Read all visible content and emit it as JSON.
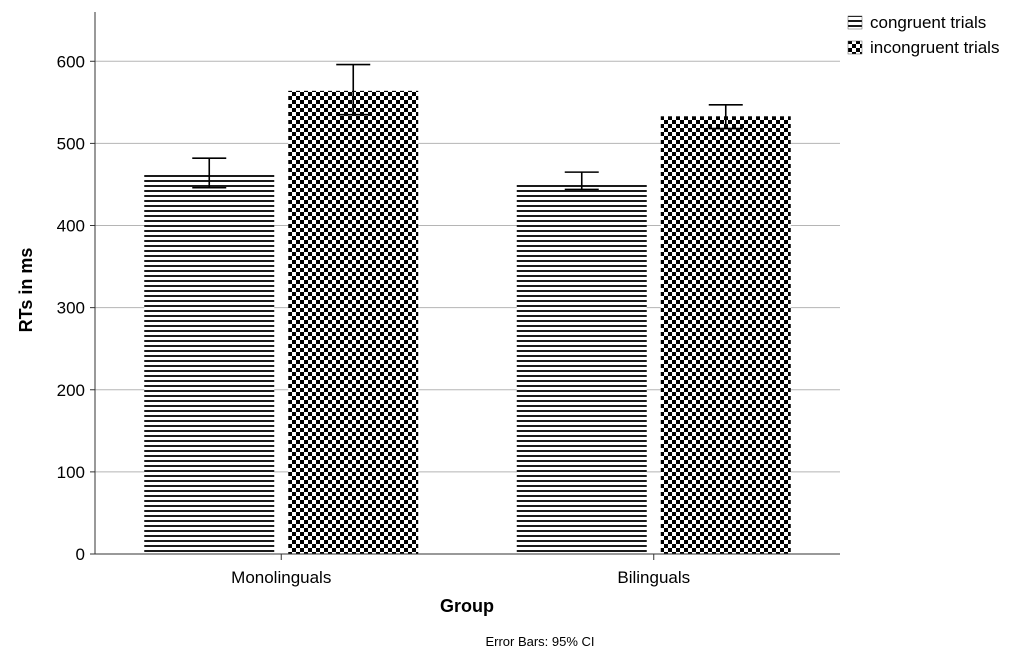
{
  "chart_data": {
    "type": "bar",
    "categories": [
      "Monolinguals",
      "Bilinguals"
    ],
    "series": [
      {
        "name": "congruent trials",
        "values": [
          465,
          452
        ],
        "ci_low": [
          446,
          444
        ],
        "ci_high": [
          482,
          465
        ],
        "pattern": "horizontal-lines"
      },
      {
        "name": "incongruent trials",
        "values": [
          564,
          533
        ],
        "ci_low": [
          535,
          518
        ],
        "ci_high": [
          596,
          547
        ],
        "pattern": "checkerboard"
      }
    ],
    "xlabel": "Group",
    "ylabel": "RTs in ms",
    "ylim": [
      0,
      660
    ],
    "yticks": [
      0,
      100,
      200,
      300,
      400,
      500,
      600
    ],
    "grid": true,
    "legend_position": "top-right",
    "footnote": "Error Bars: 95% CI"
  }
}
